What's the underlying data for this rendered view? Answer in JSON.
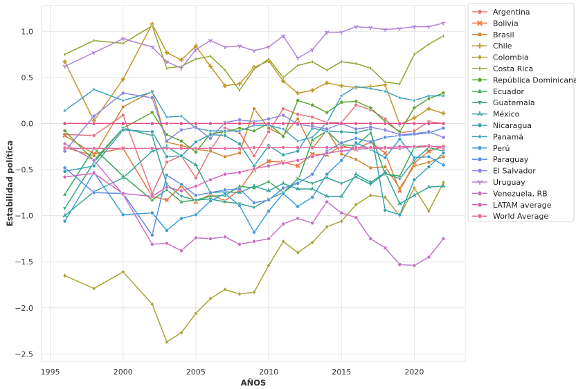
{
  "chart_data": {
    "type": "line",
    "title": "",
    "xlabel": "AÑOS",
    "ylabel": "Estabilidad política",
    "xlim": [
      1994.4,
      2023.5
    ],
    "ylim": [
      -2.58,
      1.28
    ],
    "grid": true,
    "legend_position": "outside-right",
    "x_ticks": [
      1995,
      2000,
      2005,
      2010,
      2015,
      2020
    ],
    "x_tick_labels": [
      "1995",
      "2000",
      "2005",
      "2010",
      "2015",
      "2020"
    ],
    "y_ticks": [
      1.0,
      0.5,
      0.0,
      -0.5,
      -1.0,
      -1.5,
      -2.0,
      -2.5
    ],
    "y_tick_labels": [
      "1.0",
      "0.5",
      "0.0",
      "−0.5",
      "−1.0",
      "−1.5",
      "−2.0",
      "−2.5"
    ],
    "x": [
      1996,
      1998,
      2000,
      2002,
      2003,
      2004,
      2005,
      2006,
      2007,
      2008,
      2009,
      2010,
      2011,
      2012,
      2013,
      2014,
      2015,
      2016,
      2017,
      2018,
      2019,
      2020,
      2021,
      2022
    ],
    "series": [
      {
        "name": "Argentina",
        "color": "#e5717a",
        "marker": "circle",
        "values": [
          -0.12,
          -0.13,
          0.09,
          -0.76,
          -0.42,
          -0.35,
          -0.59,
          -0.29,
          -0.05,
          -0.1,
          -0.35,
          -0.09,
          0.16,
          0.1,
          0.07,
          0.01,
          0.01,
          0.2,
          0.15,
          0.05,
          -0.1,
          -0.08,
          0.02,
          0.0
        ]
      },
      {
        "name": "Bolivia",
        "color": "#e7753f",
        "marker": "x",
        "values": [
          -0.13,
          -0.33,
          -0.27,
          -0.79,
          -0.83,
          -0.68,
          -0.85,
          -0.77,
          -0.84,
          -0.72,
          -0.5,
          -0.41,
          -0.42,
          -0.46,
          -0.33,
          -0.34,
          -0.24,
          -0.28,
          -0.2,
          -0.32,
          -0.73,
          -0.43,
          -0.3,
          -0.25
        ]
      },
      {
        "name": "Brasil",
        "color": "#cd8630",
        "marker": "square",
        "values": [
          -0.26,
          -0.35,
          0.18,
          0.35,
          -0.2,
          -0.24,
          -0.28,
          -0.3,
          -0.36,
          -0.32,
          0.16,
          -0.05,
          -0.13,
          0.05,
          -0.27,
          -0.07,
          -0.33,
          -0.39,
          -0.48,
          -0.47,
          -0.7,
          -0.46,
          -0.42,
          -0.36
        ]
      },
      {
        "name": "Chile",
        "color": "#c4962c",
        "marker": "plus",
        "values": [
          0.67,
          0.03,
          0.48,
          1.08,
          0.77,
          0.69,
          0.84,
          0.62,
          0.41,
          0.43,
          0.61,
          0.68,
          0.46,
          0.33,
          0.36,
          0.44,
          0.41,
          0.39,
          0.4,
          0.42,
          -0.01,
          0.06,
          0.16,
          0.11
        ]
      },
      {
        "name": "Colombia",
        "color": "#a9a234",
        "marker": "diamond",
        "values": [
          -1.65,
          -1.79,
          -1.61,
          -1.96,
          -2.37,
          -2.27,
          -2.06,
          -1.9,
          -1.8,
          -1.85,
          -1.83,
          -1.54,
          -1.28,
          -1.4,
          -1.29,
          -1.12,
          -1.06,
          -0.88,
          -0.78,
          -0.8,
          -1.0,
          -0.7,
          -0.95,
          -0.64
        ]
      },
      {
        "name": "Costa Rica",
        "color": "#8ea52d",
        "marker": "diamond-thin",
        "values": [
          0.75,
          0.9,
          0.87,
          1.06,
          0.6,
          0.62,
          0.7,
          0.73,
          0.58,
          0.36,
          0.59,
          0.7,
          0.5,
          0.63,
          0.67,
          0.58,
          0.67,
          0.65,
          0.6,
          0.45,
          0.43,
          0.75,
          0.86,
          0.95
        ]
      },
      {
        "name": "República Dominicana",
        "color": "#5ba430",
        "marker": "pentagon",
        "values": [
          -0.08,
          -0.4,
          -0.05,
          0.12,
          -0.12,
          -0.19,
          -0.31,
          -0.11,
          -0.09,
          -0.05,
          -0.08,
          0.0,
          -0.14,
          0.25,
          0.2,
          0.12,
          0.23,
          0.24,
          0.17,
          0.02,
          -0.09,
          0.17,
          0.27,
          0.33
        ]
      },
      {
        "name": "Ecuador",
        "color": "#33a856",
        "marker": "triangle-up",
        "values": [
          -0.77,
          -0.27,
          -0.57,
          -0.83,
          -0.72,
          -0.85,
          -0.83,
          -0.79,
          -0.78,
          -0.68,
          -0.7,
          -0.63,
          -0.75,
          -0.63,
          -0.18,
          -0.08,
          -0.23,
          -0.24,
          -0.1,
          -0.55,
          -0.57,
          -0.26,
          -0.25,
          -0.25
        ]
      },
      {
        "name": "Guatemala",
        "color": "#35a48c",
        "marker": "triangle-down",
        "values": [
          -0.92,
          -0.42,
          -0.05,
          -0.13,
          -0.66,
          -0.79,
          -0.83,
          -0.82,
          -0.85,
          -0.87,
          -0.91,
          -0.82,
          -0.75,
          -0.6,
          -0.65,
          -0.59,
          -0.65,
          -0.58,
          -0.66,
          -0.54,
          -0.6,
          -0.4,
          -0.26,
          -0.3
        ]
      },
      {
        "name": "México",
        "color": "#36a49b",
        "marker": "tri",
        "values": [
          -1.0,
          -0.74,
          -0.59,
          -0.3,
          -0.25,
          -0.35,
          -0.45,
          -0.75,
          -0.74,
          -0.75,
          -0.68,
          -0.73,
          -0.65,
          -0.71,
          -0.71,
          -0.79,
          -0.79,
          -0.55,
          -0.64,
          -0.53,
          -0.87,
          -0.78,
          -0.69,
          -0.68
        ]
      },
      {
        "name": "Nicaragua",
        "color": "#38a2ab",
        "marker": "circle",
        "values": [
          -0.52,
          -0.46,
          -0.07,
          -0.09,
          -0.36,
          -0.35,
          -0.2,
          -0.12,
          -0.13,
          -0.22,
          -0.46,
          -0.24,
          -0.34,
          -0.3,
          -0.05,
          -0.08,
          -0.09,
          -0.1,
          -0.06,
          -0.94,
          -0.99,
          -0.61,
          -0.47,
          -0.32
        ]
      },
      {
        "name": "Panamá",
        "color": "#3aa1bd",
        "marker": "star",
        "values": [
          0.14,
          0.37,
          0.25,
          0.34,
          0.07,
          0.08,
          -0.05,
          -0.08,
          -0.08,
          -0.08,
          -0.02,
          -0.02,
          -0.06,
          -0.19,
          -0.15,
          0.01,
          0.3,
          0.4,
          0.38,
          0.35,
          0.28,
          0.25,
          0.3,
          0.3
        ]
      },
      {
        "name": "Perú",
        "color": "#3d9ed8",
        "marker": "hexagon",
        "values": [
          -1.06,
          -0.53,
          -0.99,
          -0.97,
          -1.16,
          -1.03,
          -0.99,
          -0.84,
          -0.76,
          -0.89,
          -1.18,
          -0.95,
          -0.76,
          -0.9,
          -0.8,
          -0.55,
          -0.4,
          -0.21,
          -0.28,
          -0.37,
          -0.17,
          -0.37,
          -0.36,
          -0.45
        ]
      },
      {
        "name": "Paraguay",
        "color": "#5a8de6",
        "marker": "circle",
        "values": [
          -0.48,
          -0.75,
          -0.76,
          -1.21,
          -0.56,
          -0.66,
          -0.78,
          -0.75,
          -0.72,
          -0.71,
          -0.86,
          -0.83,
          -0.7,
          -0.65,
          -0.55,
          -0.3,
          -0.21,
          -0.16,
          -0.2,
          -0.15,
          -0.13,
          -0.12,
          -0.1,
          -0.05
        ]
      },
      {
        "name": "El Salvador",
        "color": "#8888e2",
        "marker": "octagon",
        "values": [
          -0.3,
          0.08,
          0.33,
          0.28,
          -0.19,
          -0.07,
          -0.04,
          -0.16,
          0.01,
          0.04,
          0.02,
          0.05,
          0.09,
          -0.01,
          -0.03,
          -0.06,
          0.0,
          -0.06,
          -0.04,
          -0.07,
          -0.12,
          -0.11,
          -0.09,
          -0.15
        ]
      },
      {
        "name": "Uruguay",
        "color": "#b185d6",
        "marker": "tri-down",
        "values": [
          0.62,
          0.77,
          0.92,
          0.83,
          0.67,
          0.6,
          0.8,
          0.9,
          0.83,
          0.84,
          0.79,
          0.83,
          0.95,
          0.71,
          0.8,
          0.99,
          0.99,
          1.05,
          1.04,
          1.02,
          1.03,
          1.05,
          1.05,
          1.09
        ]
      },
      {
        "name": "Venezuela, RB",
        "color": "#c472c4",
        "marker": "circle",
        "values": [
          -0.22,
          -0.4,
          -0.77,
          -1.31,
          -1.3,
          -1.38,
          -1.24,
          -1.25,
          -1.23,
          -1.31,
          -1.28,
          -1.25,
          -1.09,
          -1.03,
          -1.08,
          -0.85,
          -0.97,
          -1.02,
          -1.25,
          -1.35,
          -1.53,
          -1.54,
          -1.45,
          -1.25
        ]
      },
      {
        "name": "LATAM average",
        "color": "#d466b6",
        "marker": "circle",
        "values": [
          -0.58,
          -0.54,
          -0.76,
          -0.79,
          -0.69,
          -0.73,
          -0.68,
          -0.61,
          -0.55,
          -0.53,
          -0.49,
          -0.46,
          -0.43,
          -0.4,
          -0.36,
          -0.32,
          -0.3,
          -0.28,
          -0.27,
          -0.27,
          -0.27,
          -0.25,
          -0.24,
          -0.27
        ]
      },
      {
        "name": "World Average",
        "color": "#e4689e",
        "marker": "circle",
        "values": [
          -0.27,
          -0.27,
          -0.27,
          -0.27,
          -0.27,
          -0.27,
          -0.27,
          -0.27,
          -0.27,
          -0.27,
          -0.26,
          -0.26,
          -0.26,
          -0.26,
          -0.26,
          -0.26,
          -0.26,
          -0.26,
          -0.26,
          -0.26,
          -0.25,
          -0.25,
          -0.25,
          -0.25
        ]
      },
      {
        "name": "",
        "color": "#e04f8a",
        "marker": "circle",
        "legend": false,
        "values": [
          0.0,
          0.0,
          0.0,
          0.0,
          0.0,
          0.0,
          0.0,
          0.0,
          0.0,
          0.0,
          0.0,
          0.0,
          0.0,
          0.0,
          0.0,
          0.0,
          0.0,
          0.0,
          0.0,
          0.0,
          0.0,
          0.0,
          0.0,
          0.0
        ]
      }
    ]
  }
}
